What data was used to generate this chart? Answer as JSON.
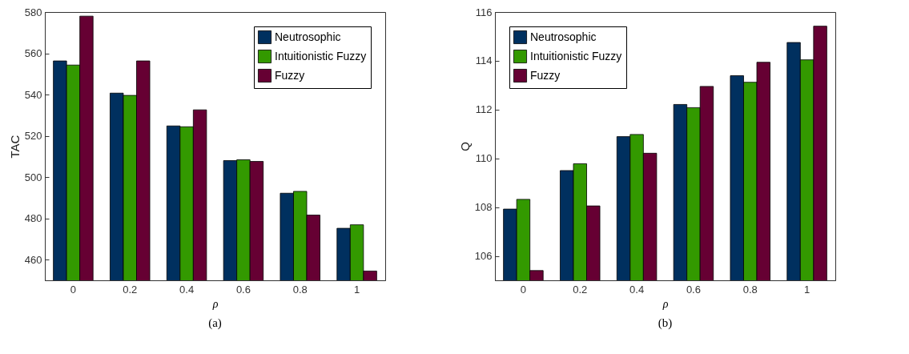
{
  "chart_data": [
    {
      "type": "bar",
      "xlabel": "ρ",
      "ylabel": "TAC",
      "categories": [
        "0",
        "0.2",
        "0.4",
        "0.6",
        "0.8",
        "1"
      ],
      "ylim": [
        450,
        580
      ],
      "yticks": [
        460,
        480,
        500,
        520,
        540,
        560,
        580
      ],
      "legend": "top right",
      "annotations": [
        "(a)"
      ],
      "series": [
        {
          "name": "Neutrosophic",
          "color": "#00305f",
          "values": [
            556.3,
            540.7,
            524.8,
            508.0,
            492.2,
            475.2
          ]
        },
        {
          "name": "Intuitionistic Fuzzy",
          "color": "#339900",
          "values": [
            554.3,
            539.6,
            524.4,
            508.4,
            493.1,
            476.9
          ]
        },
        {
          "name": "Fuzzy",
          "color": "#660033",
          "values": [
            578.0,
            556.3,
            532.6,
            507.6,
            481.6,
            454.5
          ]
        }
      ]
    },
    {
      "type": "bar",
      "xlabel": "ρ",
      "ylabel": "Q",
      "categories": [
        "0",
        "0.2",
        "0.4",
        "0.6",
        "0.8",
        "1"
      ],
      "ylim": [
        105,
        116
      ],
      "yticks": [
        106,
        108,
        110,
        112,
        114,
        116
      ],
      "legend": "top left",
      "annotations": [
        "(b)"
      ],
      "series": [
        {
          "name": "Neutrosophic",
          "color": "#00305f",
          "values": [
            107.92,
            109.5,
            110.89,
            112.21,
            113.39,
            114.75
          ]
        },
        {
          "name": "Intuitionistic Fuzzy",
          "color": "#339900",
          "values": [
            108.32,
            109.78,
            110.98,
            112.08,
            113.12,
            114.04
          ]
        },
        {
          "name": "Fuzzy",
          "color": "#660033",
          "values": [
            105.4,
            108.05,
            110.21,
            112.95,
            113.94,
            115.42
          ]
        }
      ]
    }
  ]
}
